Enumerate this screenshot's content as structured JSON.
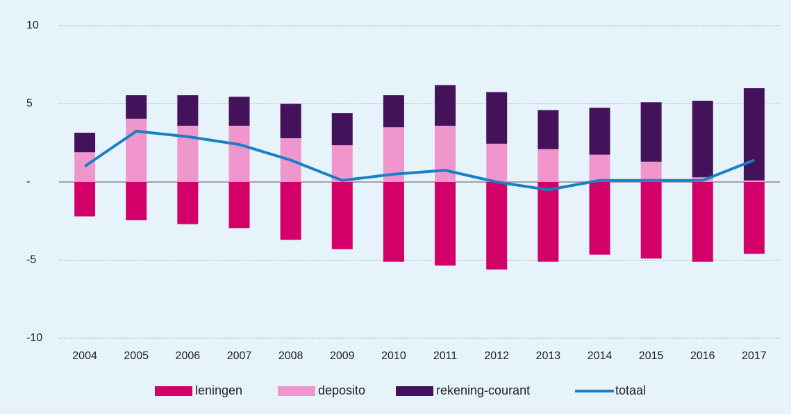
{
  "chart_data": {
    "type": "bar",
    "categories": [
      "2004",
      "2005",
      "2006",
      "2007",
      "2008",
      "2009",
      "2010",
      "2011",
      "2012",
      "2013",
      "2014",
      "2015",
      "2016",
      "2017"
    ],
    "series": [
      {
        "name": "leningen",
        "color": "#d4006a",
        "values": [
          -2.2,
          -2.45,
          -2.7,
          -2.95,
          -3.7,
          -4.3,
          -5.1,
          -5.35,
          -5.6,
          -5.1,
          -4.65,
          -4.9,
          -5.1,
          -4.6
        ]
      },
      {
        "name": "deposito",
        "color": "#f096cc",
        "values": [
          1.9,
          4.05,
          3.6,
          3.6,
          2.8,
          2.35,
          3.5,
          3.6,
          2.45,
          2.1,
          1.75,
          1.3,
          0.3,
          0.1
        ]
      },
      {
        "name": "rekening-courant",
        "color": "#44125a",
        "values": [
          1.25,
          1.5,
          1.95,
          1.85,
          2.2,
          2.05,
          2.05,
          2.6,
          3.3,
          2.5,
          3.0,
          3.8,
          4.9,
          5.9
        ]
      },
      {
        "name": "totaal",
        "type": "line",
        "color": "#1a7fc4",
        "values": [
          1.0,
          3.25,
          2.9,
          2.4,
          1.4,
          0.1,
          0.5,
          0.75,
          0,
          -0.5,
          0.1,
          0.1,
          0.1,
          1.4
        ]
      }
    ],
    "ylim": [
      -10,
      10
    ],
    "yticks": [
      -10,
      -5,
      {
        "value": 0,
        "label": "-"
      },
      5,
      10
    ],
    "grid": true
  }
}
